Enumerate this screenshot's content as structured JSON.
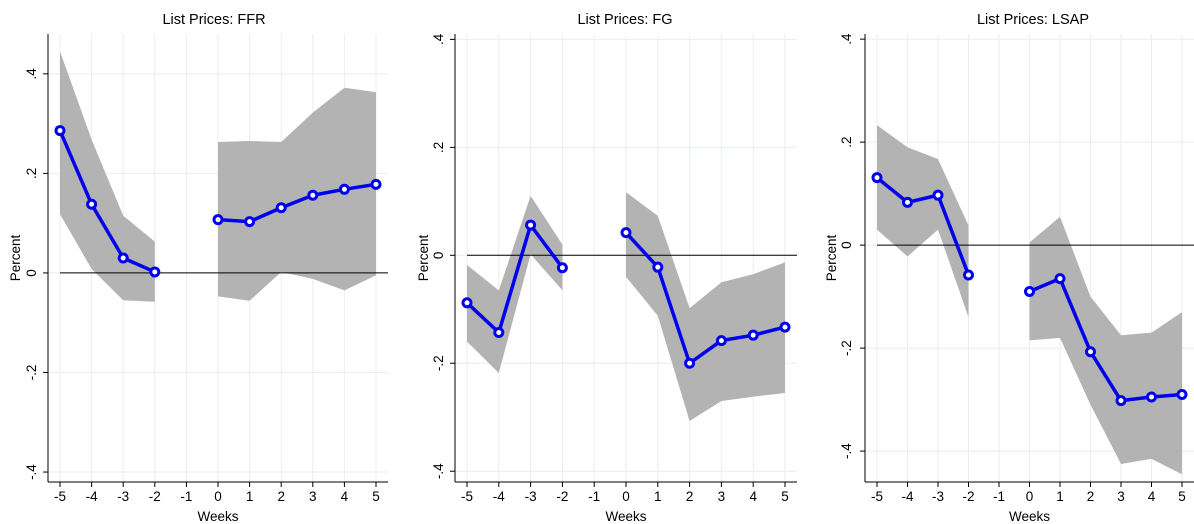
{
  "chart_data": [
    {
      "type": "line",
      "title": "List Prices: FFR",
      "xlabel": "Weeks",
      "ylabel": "Percent",
      "x_ticks": [
        "-5",
        "-4",
        "-3",
        "-2",
        "-1",
        "0",
        "1",
        "2",
        "3",
        "4",
        "5"
      ],
      "y_ticks": [
        {
          "value": -0.4,
          "label": "-.4"
        },
        {
          "value": -0.2,
          "label": "-.2"
        },
        {
          "value": 0,
          "label": "0"
        },
        {
          "value": 0.2,
          "label": ".2"
        },
        {
          "value": 0.4,
          "label": ".4"
        }
      ],
      "xlim": [
        -5,
        5
      ],
      "ylim": [
        -0.42,
        0.48
      ],
      "grid": true,
      "segments": [
        {
          "x": [
            -5,
            -4,
            -3,
            -2
          ],
          "y": [
            0.286,
            0.138,
            0.03,
            0.002
          ],
          "lower": [
            0.118,
            0.008,
            -0.055,
            -0.058
          ],
          "upper": [
            0.445,
            0.268,
            0.115,
            0.063
          ]
        },
        {
          "x": [
            0,
            1,
            2,
            3,
            4,
            5
          ],
          "y": [
            0.107,
            0.103,
            0.131,
            0.156,
            0.168,
            0.178
          ],
          "lower": [
            -0.047,
            -0.056,
            0.002,
            -0.012,
            -0.035,
            -0.005
          ],
          "upper": [
            0.263,
            0.265,
            0.263,
            0.322,
            0.372,
            0.363
          ]
        }
      ]
    },
    {
      "type": "line",
      "title": "List Prices: FG",
      "xlabel": "Weeks",
      "ylabel": "Percent",
      "x_ticks": [
        "-5",
        "-4",
        "-3",
        "-2",
        "-1",
        "0",
        "1",
        "2",
        "3",
        "4",
        "5"
      ],
      "y_ticks": [
        {
          "value": -0.4,
          "label": "-.4"
        },
        {
          "value": -0.2,
          "label": "-.2"
        },
        {
          "value": 0,
          "label": "0"
        },
        {
          "value": 0.2,
          "label": ".2"
        },
        {
          "value": 0.4,
          "label": ".4"
        }
      ],
      "xlim": [
        -5,
        5
      ],
      "ylim": [
        -0.42,
        0.41
      ],
      "grid": true,
      "segments": [
        {
          "x": [
            -5,
            -4,
            -3,
            -2
          ],
          "y": [
            -0.088,
            -0.143,
            0.056,
            -0.023
          ],
          "lower": [
            -0.16,
            -0.218,
            0.002,
            -0.065
          ],
          "upper": [
            -0.018,
            -0.065,
            0.11,
            0.02
          ]
        },
        {
          "x": [
            0,
            1,
            2,
            3,
            4,
            5
          ],
          "y": [
            0.042,
            -0.022,
            -0.2,
            -0.158,
            -0.148,
            -0.133
          ],
          "lower": [
            -0.04,
            -0.112,
            -0.307,
            -0.27,
            -0.262,
            -0.255
          ],
          "upper": [
            0.117,
            0.073,
            -0.098,
            -0.05,
            -0.035,
            -0.013
          ]
        }
      ]
    },
    {
      "type": "line",
      "title": "List Prices: LSAP",
      "xlabel": "Weeks",
      "ylabel": "Percent",
      "x_ticks": [
        "-5",
        "-4",
        "-3",
        "-2",
        "-1",
        "0",
        "1",
        "2",
        "3",
        "4",
        "5"
      ],
      "y_ticks": [
        {
          "value": -0.4,
          "label": "-.4"
        },
        {
          "value": -0.2,
          "label": "-.2"
        },
        {
          "value": 0,
          "label": "0"
        },
        {
          "value": 0.2,
          "label": ".2"
        },
        {
          "value": 0.4,
          "label": ".4"
        }
      ],
      "xlim": [
        -5,
        5
      ],
      "ylim": [
        -0.46,
        0.41
      ],
      "grid": true,
      "segments": [
        {
          "x": [
            -5,
            -4,
            -3,
            -2
          ],
          "y": [
            0.131,
            0.083,
            0.097,
            -0.058
          ],
          "lower": [
            0.03,
            -0.022,
            0.03,
            -0.14
          ],
          "upper": [
            0.233,
            0.19,
            0.167,
            0.038
          ]
        },
        {
          "x": [
            0,
            1,
            2,
            3,
            4,
            5
          ],
          "y": [
            -0.09,
            -0.065,
            -0.207,
            -0.302,
            -0.295,
            -0.29
          ],
          "lower": [
            -0.185,
            -0.18,
            -0.31,
            -0.425,
            -0.415,
            -0.445
          ],
          "upper": [
            0.005,
            0.055,
            -0.1,
            -0.175,
            -0.17,
            -0.13
          ]
        }
      ]
    }
  ]
}
